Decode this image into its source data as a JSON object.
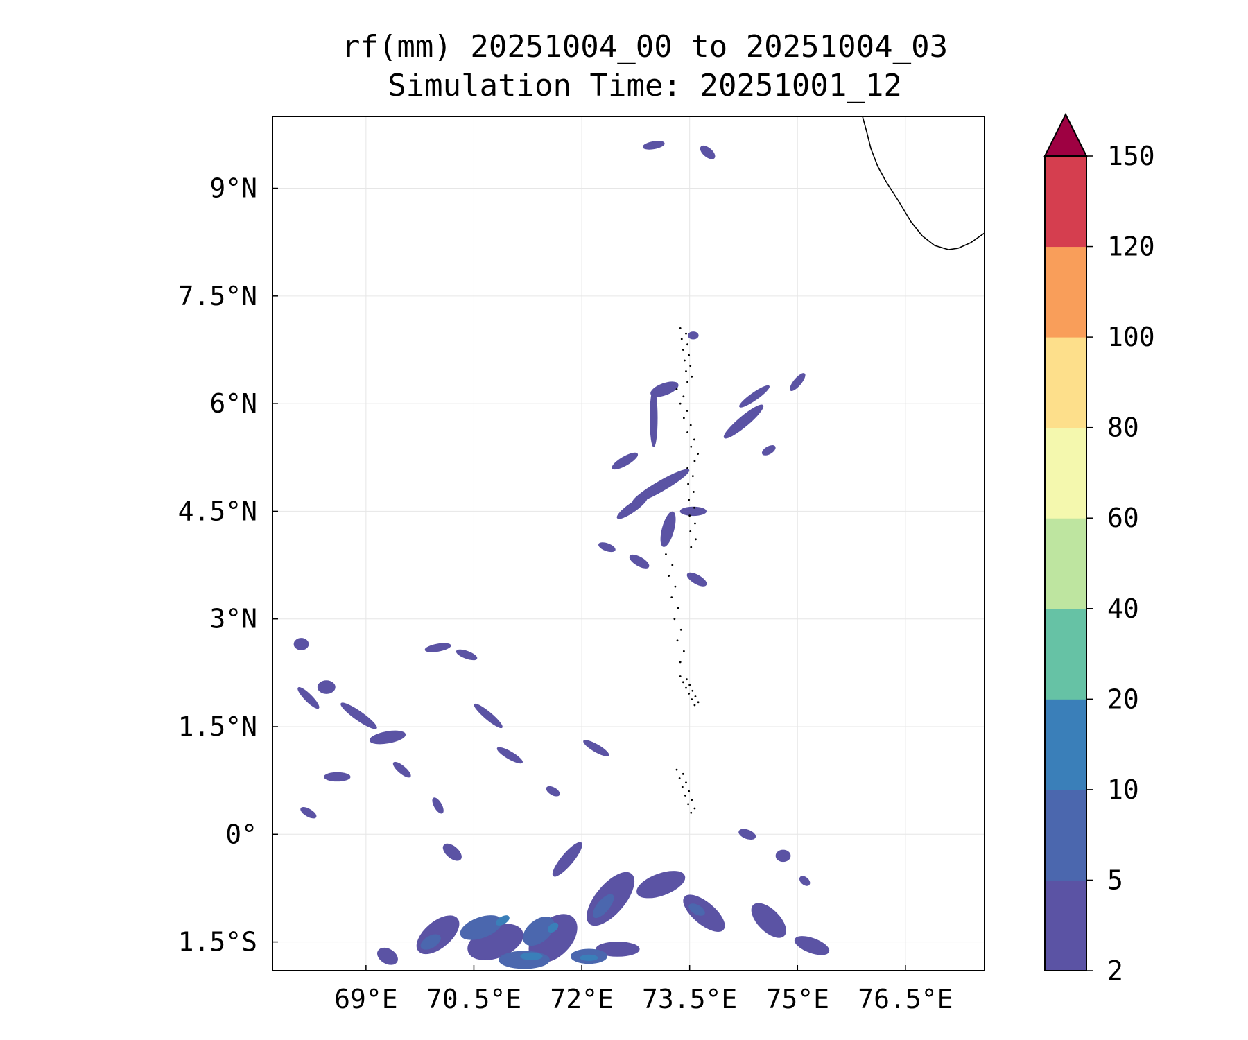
{
  "header": {
    "title_line1": "rf(mm) 20251004_00 to 20251004_03",
    "title_line2": "Simulation Time: 20251001_12"
  },
  "chart_data": {
    "type": "heatmap",
    "title": "rf(mm) 20251004_00 to 20251004_03\nSimulation Time: 20251001_12",
    "xlabel": "",
    "ylabel": "",
    "xlim": [
      67.7,
      77.6
    ],
    "ylim": [
      -1.9,
      10.0
    ],
    "x_ticks": [
      {
        "value": 69.0,
        "label": "69°E"
      },
      {
        "value": 70.5,
        "label": "70.5°E"
      },
      {
        "value": 72.0,
        "label": "72°E"
      },
      {
        "value": 73.5,
        "label": "73.5°E"
      },
      {
        "value": 75.0,
        "label": "75°E"
      },
      {
        "value": 76.5,
        "label": "76.5°E"
      }
    ],
    "y_ticks": [
      {
        "value": 9.0,
        "label": "9°N"
      },
      {
        "value": 7.5,
        "label": "7.5°N"
      },
      {
        "value": 6.0,
        "label": "6°N"
      },
      {
        "value": 4.5,
        "label": "4.5°N"
      },
      {
        "value": 3.0,
        "label": "3°N"
      },
      {
        "value": 1.5,
        "label": "1.5°N"
      },
      {
        "value": 0.0,
        "label": "0°"
      },
      {
        "value": -1.5,
        "label": "1.5°S"
      }
    ],
    "grid": true,
    "colorbar": {
      "levels": [
        2,
        5,
        10,
        20,
        40,
        60,
        80,
        100,
        120,
        150
      ],
      "labels": [
        "2",
        "5",
        "10",
        "20",
        "40",
        "60",
        "80",
        "100",
        "120",
        "150"
      ],
      "colors": [
        "#5b53a4",
        "#4b67ae",
        "#3a7fb9",
        "#66c2a5",
        "#bee5a0",
        "#f4f8ae",
        "#fddf8b",
        "#f99e5a",
        "#d53e4f"
      ],
      "extend_color": "#9e0142",
      "extend": "max"
    },
    "rain_cells": [
      {
        "lon": 73.0,
        "lat": 9.6,
        "rx": 0.15,
        "ry": 0.05,
        "rot": -10,
        "level": 0
      },
      {
        "lon": 73.75,
        "lat": 9.5,
        "rx": 0.12,
        "ry": 0.06,
        "rot": 40,
        "level": 0
      },
      {
        "lon": 73.55,
        "lat": 6.95,
        "rx": 0.07,
        "ry": 0.05,
        "rot": 0,
        "level": 0
      },
      {
        "lon": 74.4,
        "lat": 6.1,
        "rx": 0.25,
        "ry": 0.05,
        "rot": -35,
        "level": 0
      },
      {
        "lon": 74.25,
        "lat": 5.75,
        "rx": 0.35,
        "ry": 0.07,
        "rot": -40,
        "level": 0
      },
      {
        "lon": 73.0,
        "lat": 5.8,
        "rx": 0.05,
        "ry": 0.4,
        "rot": 0,
        "level": 0
      },
      {
        "lon": 73.15,
        "lat": 6.2,
        "rx": 0.2,
        "ry": 0.08,
        "rot": -20,
        "level": 0
      },
      {
        "lon": 73.1,
        "lat": 4.85,
        "rx": 0.45,
        "ry": 0.07,
        "rot": -30,
        "level": 0
      },
      {
        "lon": 72.7,
        "lat": 4.55,
        "rx": 0.25,
        "ry": 0.06,
        "rot": -35,
        "level": 0
      },
      {
        "lon": 73.55,
        "lat": 4.5,
        "rx": 0.18,
        "ry": 0.06,
        "rot": 0,
        "level": 0
      },
      {
        "lon": 72.6,
        "lat": 5.2,
        "rx": 0.2,
        "ry": 0.06,
        "rot": -30,
        "level": 0
      },
      {
        "lon": 73.2,
        "lat": 4.25,
        "rx": 0.08,
        "ry": 0.25,
        "rot": 15,
        "level": 0
      },
      {
        "lon": 72.8,
        "lat": 3.8,
        "rx": 0.15,
        "ry": 0.06,
        "rot": 30,
        "level": 0
      },
      {
        "lon": 73.6,
        "lat": 3.55,
        "rx": 0.15,
        "ry": 0.06,
        "rot": 30,
        "level": 0
      },
      {
        "lon": 72.35,
        "lat": 4.0,
        "rx": 0.12,
        "ry": 0.05,
        "rot": 20,
        "level": 0
      },
      {
        "lon": 75.0,
        "lat": 6.3,
        "rx": 0.15,
        "ry": 0.05,
        "rot": -50,
        "level": 0
      },
      {
        "lon": 74.6,
        "lat": 5.35,
        "rx": 0.1,
        "ry": 0.05,
        "rot": -30,
        "level": 0
      },
      {
        "lon": 68.1,
        "lat": 2.65,
        "rx": 0.1,
        "ry": 0.08,
        "rot": 0,
        "level": 0
      },
      {
        "lon": 68.45,
        "lat": 2.05,
        "rx": 0.12,
        "ry": 0.09,
        "rot": 0,
        "level": 0
      },
      {
        "lon": 68.9,
        "lat": 1.65,
        "rx": 0.3,
        "ry": 0.06,
        "rot": 35,
        "level": 0
      },
      {
        "lon": 69.3,
        "lat": 1.35,
        "rx": 0.25,
        "ry": 0.08,
        "rot": -10,
        "level": 0
      },
      {
        "lon": 68.6,
        "lat": 0.8,
        "rx": 0.18,
        "ry": 0.06,
        "rot": 0,
        "level": 0
      },
      {
        "lon": 70.7,
        "lat": 1.65,
        "rx": 0.25,
        "ry": 0.05,
        "rot": 40,
        "level": 0
      },
      {
        "lon": 70.4,
        "lat": 2.5,
        "rx": 0.15,
        "ry": 0.05,
        "rot": 20,
        "level": 0
      },
      {
        "lon": 70.0,
        "lat": 2.6,
        "rx": 0.18,
        "ry": 0.05,
        "rot": -10,
        "level": 0
      },
      {
        "lon": 71.0,
        "lat": 1.1,
        "rx": 0.2,
        "ry": 0.05,
        "rot": 30,
        "level": 0
      },
      {
        "lon": 72.2,
        "lat": 1.2,
        "rx": 0.2,
        "ry": 0.05,
        "rot": 30,
        "level": 0
      },
      {
        "lon": 68.2,
        "lat": 1.9,
        "rx": 0.2,
        "ry": 0.05,
        "rot": 45,
        "level": 0
      },
      {
        "lon": 68.2,
        "lat": 0.3,
        "rx": 0.12,
        "ry": 0.05,
        "rot": 30,
        "level": 0
      },
      {
        "lon": 70.0,
        "lat": 0.4,
        "rx": 0.12,
        "ry": 0.05,
        "rot": 60,
        "level": 0
      },
      {
        "lon": 69.5,
        "lat": 0.9,
        "rx": 0.15,
        "ry": 0.05,
        "rot": 40,
        "level": 0
      },
      {
        "lon": 71.6,
        "lat": 0.6,
        "rx": 0.1,
        "ry": 0.05,
        "rot": 30,
        "level": 0
      },
      {
        "lon": 70.0,
        "lat": -1.4,
        "rx": 0.35,
        "ry": 0.18,
        "rot": -40,
        "level": 0
      },
      {
        "lon": 70.8,
        "lat": -1.5,
        "rx": 0.4,
        "ry": 0.22,
        "rot": -20,
        "level": 0
      },
      {
        "lon": 71.6,
        "lat": -1.45,
        "rx": 0.4,
        "ry": 0.25,
        "rot": -45,
        "level": 0
      },
      {
        "lon": 72.4,
        "lat": -0.9,
        "rx": 0.45,
        "ry": 0.2,
        "rot": -50,
        "level": 0
      },
      {
        "lon": 73.1,
        "lat": -0.7,
        "rx": 0.35,
        "ry": 0.15,
        "rot": -20,
        "level": 0
      },
      {
        "lon": 73.7,
        "lat": -1.1,
        "rx": 0.35,
        "ry": 0.15,
        "rot": 40,
        "level": 0
      },
      {
        "lon": 74.6,
        "lat": -1.2,
        "rx": 0.3,
        "ry": 0.15,
        "rot": 45,
        "level": 0
      },
      {
        "lon": 75.2,
        "lat": -1.55,
        "rx": 0.25,
        "ry": 0.1,
        "rot": 20,
        "level": 0
      },
      {
        "lon": 71.8,
        "lat": -0.35,
        "rx": 0.3,
        "ry": 0.08,
        "rot": -50,
        "level": 0
      },
      {
        "lon": 70.2,
        "lat": -0.25,
        "rx": 0.15,
        "ry": 0.08,
        "rot": 40,
        "level": 0
      },
      {
        "lon": 74.3,
        "lat": -0.0,
        "rx": 0.12,
        "ry": 0.06,
        "rot": 20,
        "level": 0
      },
      {
        "lon": 74.8,
        "lat": -0.3,
        "rx": 0.1,
        "ry": 0.08,
        "rot": 0,
        "level": 0
      },
      {
        "lon": 75.1,
        "lat": -0.65,
        "rx": 0.08,
        "ry": 0.05,
        "rot": 40,
        "level": 0
      },
      {
        "lon": 69.3,
        "lat": -1.7,
        "rx": 0.15,
        "ry": 0.1,
        "rot": 30,
        "level": 0
      },
      {
        "lon": 72.5,
        "lat": -1.6,
        "rx": 0.3,
        "ry": 0.1,
        "rot": 0,
        "level": 0
      },
      {
        "lon": 70.6,
        "lat": -1.3,
        "rx": 0.3,
        "ry": 0.14,
        "rot": -20,
        "level": 1
      },
      {
        "lon": 71.4,
        "lat": -1.35,
        "rx": 0.25,
        "ry": 0.15,
        "rot": -40,
        "level": 1
      },
      {
        "lon": 71.2,
        "lat": -1.75,
        "rx": 0.35,
        "ry": 0.12,
        "rot": 0,
        "level": 1
      },
      {
        "lon": 72.1,
        "lat": -1.7,
        "rx": 0.25,
        "ry": 0.1,
        "rot": 0,
        "level": 1
      },
      {
        "lon": 72.3,
        "lat": -1.0,
        "rx": 0.2,
        "ry": 0.08,
        "rot": -50,
        "level": 1
      },
      {
        "lon": 69.9,
        "lat": -1.5,
        "rx": 0.15,
        "ry": 0.08,
        "rot": -30,
        "level": 1
      },
      {
        "lon": 73.6,
        "lat": -1.05,
        "rx": 0.12,
        "ry": 0.06,
        "rot": 30,
        "level": 1
      },
      {
        "lon": 70.9,
        "lat": -1.2,
        "rx": 0.1,
        "ry": 0.05,
        "rot": -30,
        "level": 2
      },
      {
        "lon": 71.3,
        "lat": -1.7,
        "rx": 0.15,
        "ry": 0.05,
        "rot": 0,
        "level": 2
      },
      {
        "lon": 72.1,
        "lat": -1.72,
        "rx": 0.12,
        "ry": 0.04,
        "rot": 0,
        "level": 2
      },
      {
        "lon": 71.6,
        "lat": -1.3,
        "rx": 0.08,
        "ry": 0.05,
        "rot": -40,
        "level": 2
      }
    ]
  }
}
